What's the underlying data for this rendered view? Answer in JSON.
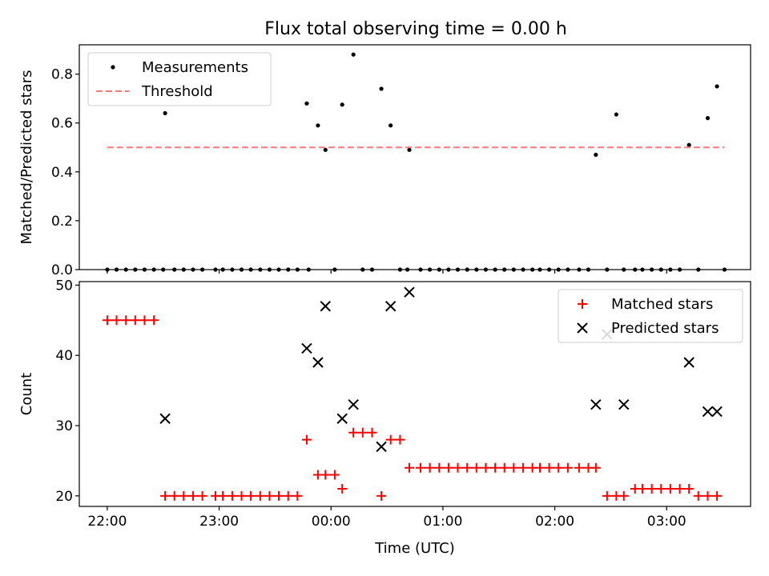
{
  "chart_data": [
    {
      "type": "scatter",
      "title": "Flux total observing time = 0.00 h",
      "xlabel": "",
      "ylabel": "Matched/Predicted stars",
      "xlim": [
        -0.25,
        5.75
      ],
      "ylim": [
        0,
        0.92
      ],
      "yticks": [
        {
          "value": 0.0,
          "label": "0.0"
        },
        {
          "value": 0.2,
          "label": "0.2"
        },
        {
          "value": 0.4,
          "label": "0.4"
        },
        {
          "value": 0.6,
          "label": "0.6"
        },
        {
          "value": 0.8,
          "label": "0.8"
        }
      ],
      "legend": {
        "position": "upper-left"
      },
      "series": [
        {
          "name": "Measurements",
          "kind": "dot",
          "color": "#000000",
          "x": [
            0.0,
            0.083,
            0.167,
            0.25,
            0.333,
            0.417,
            0.5,
            0.517,
            0.6,
            0.683,
            0.767,
            0.85,
            0.967,
            1.033,
            1.117,
            1.2,
            1.283,
            1.367,
            1.45,
            1.533,
            1.617,
            1.7,
            1.783,
            1.8,
            1.883,
            1.95,
            2.033,
            2.1,
            2.2,
            2.283,
            2.367,
            2.45,
            2.533,
            2.617,
            2.683,
            2.7,
            2.8,
            2.883,
            2.967,
            3.05,
            3.133,
            3.217,
            3.3,
            3.383,
            3.467,
            3.55,
            3.633,
            3.717,
            3.8,
            3.867,
            3.95,
            4.033,
            4.117,
            4.217,
            4.3,
            4.367,
            4.467,
            4.55,
            4.617,
            4.717,
            4.783,
            4.867,
            4.95,
            5.033,
            5.117,
            5.2,
            5.283,
            5.367,
            5.45,
            5.517
          ],
          "y": [
            0,
            0,
            0,
            0,
            0,
            0,
            0,
            0.64,
            0,
            0,
            0,
            0,
            0,
            0,
            0,
            0,
            0,
            0,
            0,
            0,
            0,
            0,
            0.68,
            0,
            0.59,
            0.49,
            0,
            0.675,
            0.88,
            0,
            0,
            0.74,
            0.59,
            0,
            0,
            0.49,
            0,
            0,
            0,
            0,
            0,
            0,
            0,
            0,
            0,
            0,
            0,
            0,
            0,
            0,
            0,
            0,
            0,
            0,
            0,
            0.47,
            0,
            0.635,
            0,
            0,
            0,
            0,
            0,
            0,
            0,
            0.51,
            0,
            0.62,
            0.75,
            0
          ]
        },
        {
          "name": "Threshold",
          "kind": "dashed-line",
          "color": "#ff7b7b",
          "x": [
            0.0,
            5.517
          ],
          "y": [
            0.5,
            0.5
          ]
        }
      ]
    },
    {
      "type": "scatter",
      "title": "",
      "xlabel": "Time (UTC)",
      "ylabel": "Count",
      "xlim": [
        -0.25,
        5.75
      ],
      "ylim": [
        18.5,
        50.5
      ],
      "xticks": [
        {
          "value": 0,
          "label": "22:00"
        },
        {
          "value": 1,
          "label": "23:00"
        },
        {
          "value": 2,
          "label": "00:00"
        },
        {
          "value": 3,
          "label": "01:00"
        },
        {
          "value": 4,
          "label": "02:00"
        },
        {
          "value": 5,
          "label": "03:00"
        }
      ],
      "yticks": [
        {
          "value": 20,
          "label": "20"
        },
        {
          "value": 30,
          "label": "30"
        },
        {
          "value": 40,
          "label": "40"
        },
        {
          "value": 50,
          "label": "50"
        }
      ],
      "legend": {
        "position": "upper-right"
      },
      "series": [
        {
          "name": "Matched stars",
          "kind": "plus",
          "color": "#ff0000",
          "x": [
            0.0,
            0.083,
            0.167,
            0.25,
            0.333,
            0.417,
            0.517,
            0.6,
            0.683,
            0.767,
            0.85,
            0.967,
            1.033,
            1.117,
            1.2,
            1.283,
            1.367,
            1.45,
            1.533,
            1.617,
            1.7,
            1.783,
            1.883,
            1.95,
            2.033,
            2.1,
            2.2,
            2.283,
            2.367,
            2.45,
            2.533,
            2.617,
            2.7,
            2.8,
            2.883,
            2.967,
            3.05,
            3.133,
            3.217,
            3.3,
            3.383,
            3.467,
            3.55,
            3.633,
            3.717,
            3.8,
            3.867,
            3.95,
            4.033,
            4.117,
            4.217,
            4.3,
            4.367,
            4.467,
            4.55,
            4.617,
            4.717,
            4.783,
            4.867,
            4.95,
            5.033,
            5.117,
            5.2,
            5.283,
            5.367,
            5.45
          ],
          "y": [
            45,
            45,
            45,
            45,
            45,
            45,
            20,
            20,
            20,
            20,
            20,
            20,
            20,
            20,
            20,
            20,
            20,
            20,
            20,
            20,
            20,
            28,
            23,
            23,
            23,
            21,
            29,
            29,
            29,
            20,
            28,
            28,
            24,
            24,
            24,
            24,
            24,
            24,
            24,
            24,
            24,
            24,
            24,
            24,
            24,
            24,
            24,
            24,
            24,
            24,
            24,
            24,
            24,
            20,
            20,
            20,
            21,
            21,
            21,
            21,
            21,
            21,
            21,
            20,
            20,
            20
          ]
        },
        {
          "name": "Predicted stars",
          "kind": "x",
          "color": "#000000",
          "x": [
            0.517,
            1.783,
            1.883,
            1.95,
            2.1,
            2.2,
            2.45,
            2.533,
            2.7,
            4.367,
            4.467,
            4.617,
            5.2,
            5.367,
            5.45
          ],
          "y": [
            31,
            41,
            39,
            47,
            31,
            33,
            27,
            47,
            49,
            33,
            43,
            33,
            39,
            32,
            32
          ]
        }
      ]
    }
  ]
}
